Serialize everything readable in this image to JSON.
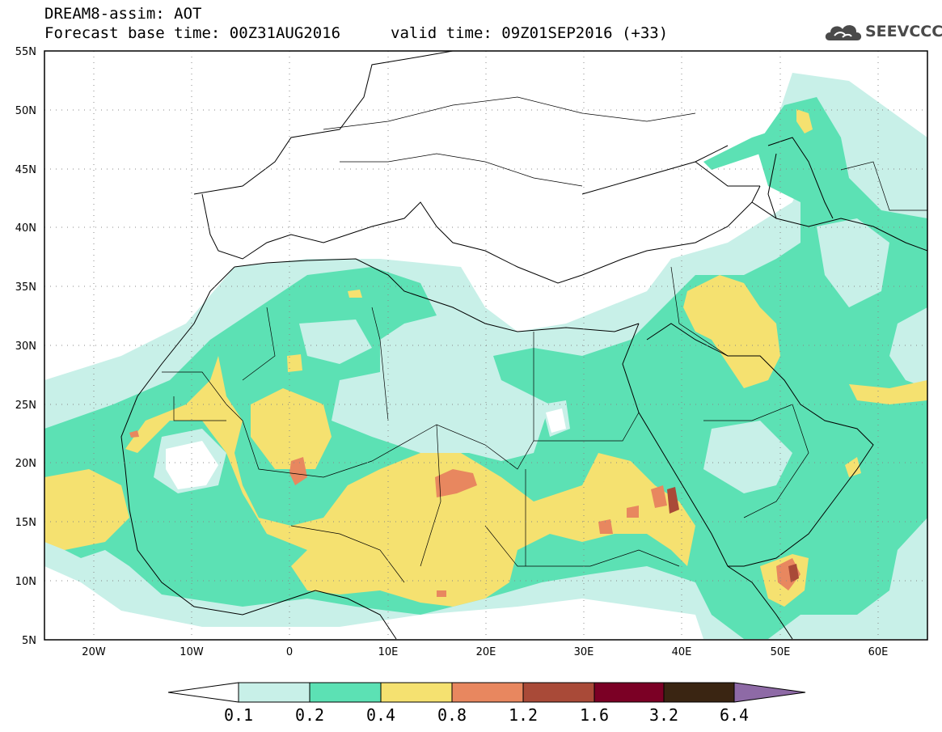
{
  "header": {
    "line1": "DREAM8-assim: AOT",
    "line2_left": "Forecast base time: 00Z31AUG2016",
    "line2_right": "valid time: 09Z01SEP2016 (+33)"
  },
  "logo": {
    "text": "SEEVCCC",
    "icon": "cloud-icon",
    "color": "#4a4a4a"
  },
  "map": {
    "lon_range": [
      -25,
      65
    ],
    "lat_range": [
      5,
      55
    ],
    "lat_labels": [
      "55N",
      "50N",
      "45N",
      "40N",
      "35N",
      "30N",
      "25N",
      "20N",
      "15N",
      "10N",
      "5N"
    ],
    "lon_labels": [
      "20W",
      "10W",
      "0",
      "10E",
      "20E",
      "30E",
      "40E",
      "50E",
      "60E"
    ]
  },
  "legend": {
    "labels": [
      "0.1",
      "0.2",
      "0.4",
      "0.8",
      "1.2",
      "1.6",
      "3.2",
      "6.4"
    ],
    "colors": [
      "#ffffff",
      "#c8f0e8",
      "#5ce1b4",
      "#f5e170",
      "#e8875f",
      "#a94a38",
      "#7b0025",
      "#3a2512",
      "#8e6aa6"
    ]
  }
}
